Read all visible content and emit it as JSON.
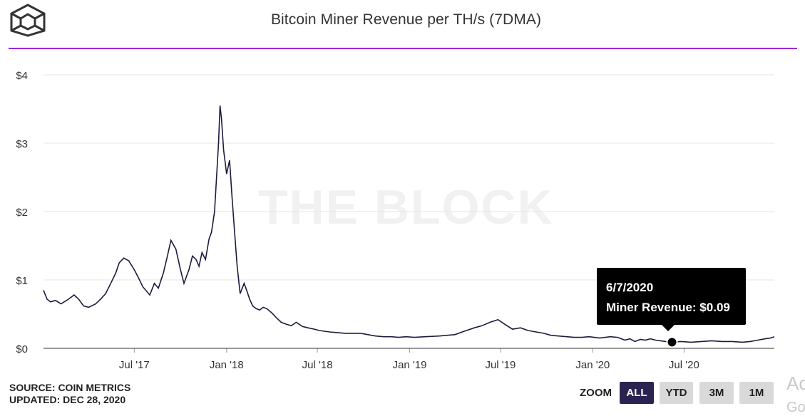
{
  "header": {
    "logo_icon": "cube-logo-icon",
    "title": "Bitcoin Miner Revenue per TH/s (7DMA)"
  },
  "watermark": "THE BLOCK",
  "chart_data": {
    "type": "line",
    "title": "Bitcoin Miner Revenue per TH/s (7DMA)",
    "xlabel": "",
    "ylabel": "",
    "ylim": [
      0,
      4
    ],
    "y_ticks": [
      "$0",
      "$1",
      "$2",
      "$3",
      "$4"
    ],
    "x_ticks": [
      "Jul '17",
      "Jan '18",
      "Jul '18",
      "Jan '19",
      "Jul '19",
      "Jan '20",
      "Jul '20"
    ],
    "x_tick_dates": [
      "2017-07-01",
      "2018-01-01",
      "2018-07-01",
      "2019-01-01",
      "2019-07-01",
      "2020-01-01",
      "2020-07-01"
    ],
    "xlim": [
      "2017-01-01",
      "2020-12-28"
    ],
    "grid": true,
    "line_color": "#1f1a3d",
    "series": [
      {
        "x": [
          "2017-01-01",
          "2017-01-08",
          "2017-01-15",
          "2017-01-25",
          "2017-02-05",
          "2017-02-20",
          "2017-03-03",
          "2017-03-12",
          "2017-03-22",
          "2017-04-01",
          "2017-04-15",
          "2017-04-25",
          "2017-05-05",
          "2017-05-15",
          "2017-05-25",
          "2017-06-01",
          "2017-06-10",
          "2017-06-20",
          "2017-07-01",
          "2017-07-08",
          "2017-07-18",
          "2017-08-01",
          "2017-08-10",
          "2017-08-18",
          "2017-08-28",
          "2017-09-05",
          "2017-09-12",
          "2017-09-22",
          "2017-10-01",
          "2017-10-08",
          "2017-10-18",
          "2017-10-25",
          "2017-11-01",
          "2017-11-07",
          "2017-11-13",
          "2017-11-20",
          "2017-11-27",
          "2017-12-02",
          "2017-12-08",
          "2017-12-12",
          "2017-12-16",
          "2017-12-19",
          "2017-12-22",
          "2017-12-26",
          "2018-01-01",
          "2018-01-07",
          "2018-01-12",
          "2018-01-17",
          "2018-01-22",
          "2018-01-28",
          "2018-02-05",
          "2018-02-10",
          "2018-02-16",
          "2018-02-22",
          "2018-03-01",
          "2018-03-08",
          "2018-03-15",
          "2018-03-22",
          "2018-04-01",
          "2018-04-10",
          "2018-04-20",
          "2018-05-01",
          "2018-05-10",
          "2018-05-20",
          "2018-06-01",
          "2018-06-12",
          "2018-06-25",
          "2018-07-05",
          "2018-07-15",
          "2018-07-25",
          "2018-08-10",
          "2018-08-25",
          "2018-09-10",
          "2018-09-25",
          "2018-10-10",
          "2018-10-25",
          "2018-11-10",
          "2018-11-25",
          "2018-12-10",
          "2018-12-25",
          "2019-01-10",
          "2019-02-01",
          "2019-03-01",
          "2019-04-01",
          "2019-04-20",
          "2019-05-10",
          "2019-05-25",
          "2019-06-10",
          "2019-06-26",
          "2019-07-10",
          "2019-07-25",
          "2019-08-10",
          "2019-08-25",
          "2019-09-10",
          "2019-09-25",
          "2019-10-10",
          "2019-10-25",
          "2019-11-10",
          "2019-11-25",
          "2019-12-10",
          "2019-12-25",
          "2020-01-15",
          "2020-02-05",
          "2020-02-20",
          "2020-03-05",
          "2020-03-15",
          "2020-03-25",
          "2020-04-05",
          "2020-04-15",
          "2020-04-25",
          "2020-05-05",
          "2020-05-15",
          "2020-05-25",
          "2020-06-07",
          "2020-06-25",
          "2020-07-15",
          "2020-08-05",
          "2020-08-25",
          "2020-09-15",
          "2020-10-05",
          "2020-10-25",
          "2020-11-10",
          "2020-11-25",
          "2020-12-10",
          "2020-12-20",
          "2020-12-28"
        ],
        "y": [
          0.85,
          0.72,
          0.68,
          0.7,
          0.65,
          0.72,
          0.78,
          0.72,
          0.62,
          0.6,
          0.65,
          0.72,
          0.8,
          0.95,
          1.1,
          1.25,
          1.32,
          1.28,
          1.15,
          1.05,
          0.9,
          0.78,
          0.95,
          0.88,
          1.1,
          1.35,
          1.58,
          1.45,
          1.15,
          0.95,
          1.15,
          1.35,
          1.3,
          1.2,
          1.4,
          1.3,
          1.6,
          1.7,
          2.0,
          2.5,
          3.0,
          3.55,
          3.35,
          2.9,
          2.55,
          2.75,
          2.2,
          1.7,
          1.2,
          0.8,
          0.95,
          0.85,
          0.72,
          0.62,
          0.58,
          0.56,
          0.6,
          0.58,
          0.52,
          0.45,
          0.38,
          0.35,
          0.33,
          0.38,
          0.32,
          0.3,
          0.28,
          0.26,
          0.25,
          0.24,
          0.23,
          0.22,
          0.22,
          0.22,
          0.2,
          0.18,
          0.17,
          0.17,
          0.16,
          0.17,
          0.16,
          0.17,
          0.18,
          0.2,
          0.25,
          0.3,
          0.33,
          0.38,
          0.42,
          0.35,
          0.28,
          0.3,
          0.26,
          0.24,
          0.22,
          0.19,
          0.18,
          0.17,
          0.16,
          0.16,
          0.17,
          0.15,
          0.17,
          0.16,
          0.12,
          0.14,
          0.1,
          0.13,
          0.12,
          0.14,
          0.12,
          0.11,
          0.1,
          0.09,
          0.1,
          0.09,
          0.1,
          0.11,
          0.1,
          0.1,
          0.09,
          0.1,
          0.12,
          0.14,
          0.15,
          0.17
        ]
      }
    ],
    "highlight": {
      "x": "2020-06-07",
      "y": 0.09
    }
  },
  "tooltip": {
    "date": "6/7/2020",
    "text": "Miner Revenue: $0.09"
  },
  "footer": {
    "source_line": "SOURCE: COIN METRICS",
    "updated_line": "UPDATED: DEC 28, 2020"
  },
  "zoom": {
    "label": "ZOOM",
    "buttons": [
      {
        "label": "ALL",
        "active": true
      },
      {
        "label": "YTD",
        "active": false
      },
      {
        "label": "3M",
        "active": false
      },
      {
        "label": "1M",
        "active": false
      }
    ]
  },
  "overlay": {
    "line1": "Ac",
    "line2": "Go"
  }
}
